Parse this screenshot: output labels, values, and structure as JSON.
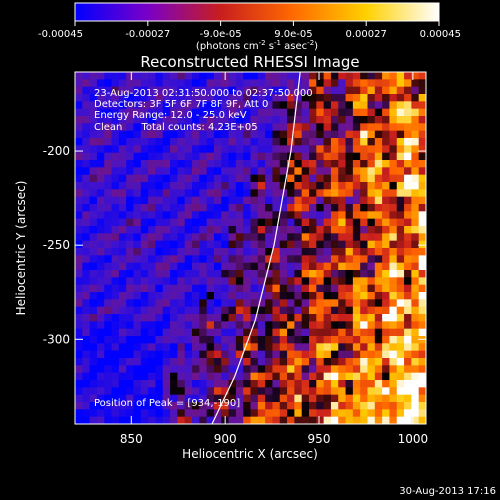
{
  "chart_data": {
    "type": "heatmap",
    "title": "Reconstructed RHESSI Image",
    "xlabel": "Heliocentric X (arcsec)",
    "ylabel": "Heliocentric Y (arcsec)",
    "xlim": [
      820,
      1007
    ],
    "ylim": [
      -345,
      -158
    ],
    "x_ticks": [
      "850",
      "900",
      "950",
      "1000"
    ],
    "y_ticks": [
      "-200",
      "-250",
      "-300"
    ],
    "colorbar": {
      "range": [
        -0.00045,
        0.00045
      ],
      "tick_labels": [
        "-0.00045",
        "-0.00027",
        "-9.0e-05",
        "9.0e-05",
        "0.00027",
        "0.00045"
      ],
      "unit_label_prefix": "(photons cm",
      "unit_label_exp1": "-2",
      "unit_label_mid": " s",
      "unit_label_exp2": "-1",
      "unit_label_mid2": " asec",
      "unit_label_exp3": "-2",
      "unit_label_suffix": ")",
      "colors": [
        "#0000ff",
        "#7a00c8",
        "#c81e1e",
        "#ff6a00",
        "#ffd000",
        "#ffffff"
      ]
    },
    "annotations": [
      "23-Aug-2013 02:31:50.000 to 02:37:50.000",
      "Detectors: 3F 5F 6F 7F 8F 9F, Att 0",
      "Energy Range: 12.0 - 25.0 keV",
      "Clean      Total counts: 4.23E+05",
      "Position of Peak = [934,-190]"
    ],
    "limb_curve": [
      [
        893,
        -345
      ],
      [
        905,
        -320
      ],
      [
        916,
        -290
      ],
      [
        926,
        -250
      ],
      [
        935,
        -200
      ],
      [
        940,
        -158
      ]
    ],
    "timestamp": "30-Aug-2013 17:16"
  }
}
